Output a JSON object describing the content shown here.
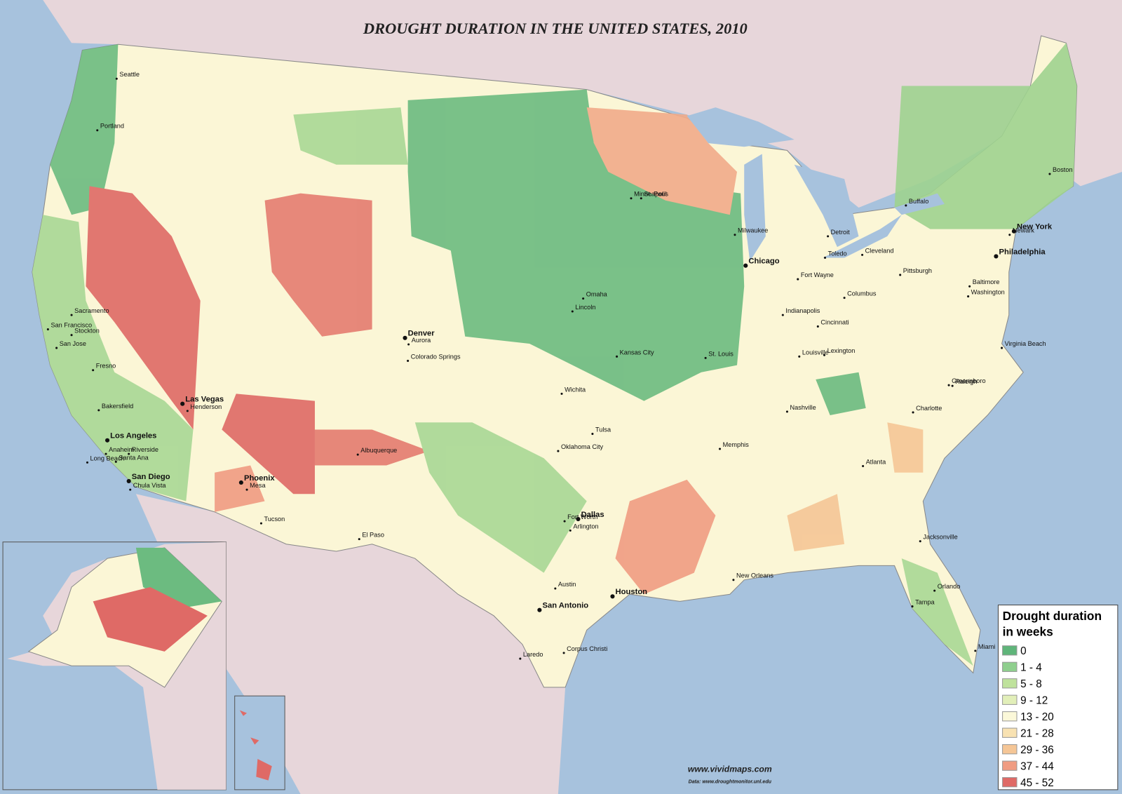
{
  "title": "DROUGHT DURATION IN THE UNITED STATES, 2010",
  "legend": {
    "title_line1": "Drought duration",
    "title_line2": "in weeks",
    "items": [
      {
        "label": "0",
        "color": "#5fb57a"
      },
      {
        "label": "1 - 4",
        "color": "#8fcf8e"
      },
      {
        "label": "5 - 8",
        "color": "#bfe29c"
      },
      {
        "label": "9 - 12",
        "color": "#e2efb9"
      },
      {
        "label": "13 - 20",
        "color": "#fbf8d9"
      },
      {
        "label": "21 - 28",
        "color": "#f8e2b2"
      },
      {
        "label": "29 - 36",
        "color": "#f5c696"
      },
      {
        "label": "37 - 44",
        "color": "#f09c82"
      },
      {
        "label": "45 - 52",
        "color": "#df6a66"
      }
    ]
  },
  "cities": [
    "Seattle",
    "Portland",
    "Sacramento",
    "San Francisco",
    "Stockton",
    "San Jose",
    "Fresno",
    "Bakersfield",
    "Los Angeles",
    "Anaheim",
    "Riverside",
    "Long Beach",
    "Santa Ana",
    "San Diego",
    "Chula Vista",
    "Las Vegas",
    "Henderson",
    "Phoenix",
    "Mesa",
    "Tucson",
    "Albuquerque",
    "El Paso",
    "Denver",
    "Aurora",
    "Colorado Springs",
    "Omaha",
    "Lincoln",
    "Kansas City",
    "Wichita",
    "Tulsa",
    "Oklahoma City",
    "Fort Worth",
    "Dallas",
    "Arlington",
    "Austin",
    "San Antonio",
    "Houston",
    "Laredo",
    "Corpus Christi",
    "New Orleans",
    "Memphis",
    "Nashville",
    "St. Louis",
    "Chicago",
    "Milwaukee",
    "Minneapolis",
    "St. Paul",
    "Detroit",
    "Toledo",
    "Cleveland",
    "Fort Wayne",
    "Indianapolis",
    "Columbus",
    "Cincinnati",
    "Louisville",
    "Lexington",
    "Pittsburgh",
    "Buffalo",
    "Boston",
    "New York",
    "Newark",
    "Philadelphia",
    "Baltimore",
    "Washington",
    "Virginia Beach",
    "Greensboro",
    "Raleigh",
    "Charlotte",
    "Atlanta",
    "Jacksonville",
    "Orlando",
    "Tampa",
    "Miami"
  ],
  "credits": {
    "site": "www.vividmaps.com",
    "source": "Data: www.droughtmonitor.unl.edu"
  }
}
